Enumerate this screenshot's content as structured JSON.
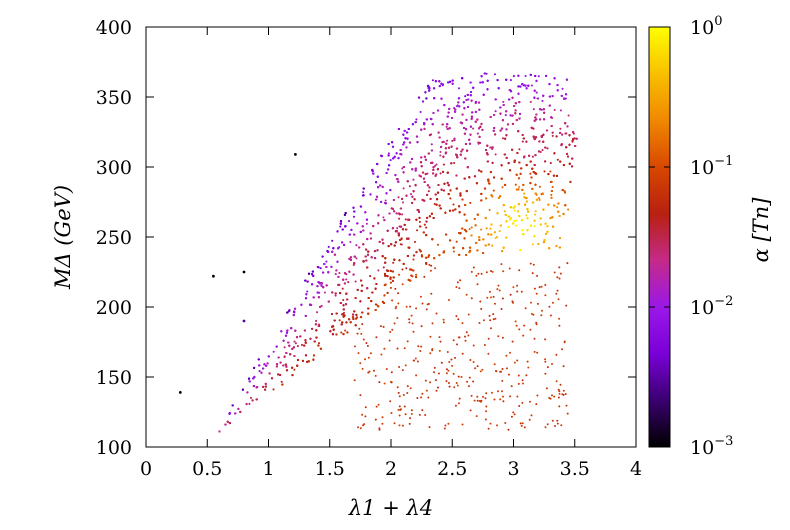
{
  "chart_data": {
    "type": "scatter",
    "title": "",
    "xlabel": "λ1 + λ4",
    "ylabel": "MΔ (GeV)",
    "xlim": [
      0,
      4
    ],
    "ylim": [
      100,
      400
    ],
    "x_ticks": [
      "0",
      "0.5",
      "1",
      "1.5",
      "2",
      "2.5",
      "3",
      "3.5",
      "4"
    ],
    "y_ticks": [
      "100",
      "150",
      "200",
      "250",
      "300",
      "350",
      "400"
    ],
    "grid": false,
    "colorbar": {
      "label": "α [Tn]",
      "scale": "log",
      "range": [
        0.001,
        1
      ],
      "tick_base": [
        "10",
        "10",
        "10",
        "10"
      ],
      "tick_exponents": [
        "0",
        "−1",
        "−2",
        "−3"
      ],
      "colormap": [
        "#000000",
        "#3a0070",
        "#7a00d8",
        "#9b18e8",
        "#c42a88",
        "#b82010",
        "#d84800",
        "#f08800",
        "#f8c000",
        "#ffff00"
      ]
    },
    "series": [
      {
        "name": "parameter-scan points",
        "description": "dense band from (0.6,115) rising to (3.5,365); color log10(alpha) low (purple) on upper edge, high (yellow) near x≈3, y≈260",
        "representative_points": [
          {
            "x": 0.28,
            "y": 139,
            "alpha": 0.001
          },
          {
            "x": 0.55,
            "y": 222,
            "alpha": 0.001
          },
          {
            "x": 0.8,
            "y": 225,
            "alpha": 0.001
          },
          {
            "x": 1.22,
            "y": 309,
            "alpha": 0.001
          },
          {
            "x": 0.8,
            "y": 190,
            "alpha": 0.003
          },
          {
            "x": 1.0,
            "y": 185,
            "alpha": 0.008
          },
          {
            "x": 1.5,
            "y": 230,
            "alpha": 0.02
          },
          {
            "x": 2.0,
            "y": 300,
            "alpha": 0.01
          },
          {
            "x": 2.4,
            "y": 372,
            "alpha": 0.02
          },
          {
            "x": 2.0,
            "y": 250,
            "alpha": 0.06
          },
          {
            "x": 2.5,
            "y": 300,
            "alpha": 0.08
          },
          {
            "x": 3.0,
            "y": 360,
            "alpha": 0.06
          },
          {
            "x": 3.0,
            "y": 260,
            "alpha": 0.6
          },
          {
            "x": 3.3,
            "y": 290,
            "alpha": 0.5
          },
          {
            "x": 2.3,
            "y": 180,
            "alpha": 0.2
          },
          {
            "x": 2.8,
            "y": 150,
            "alpha": 0.2
          },
          {
            "x": 3.5,
            "y": 235,
            "alpha": 0.2
          }
        ]
      }
    ]
  }
}
